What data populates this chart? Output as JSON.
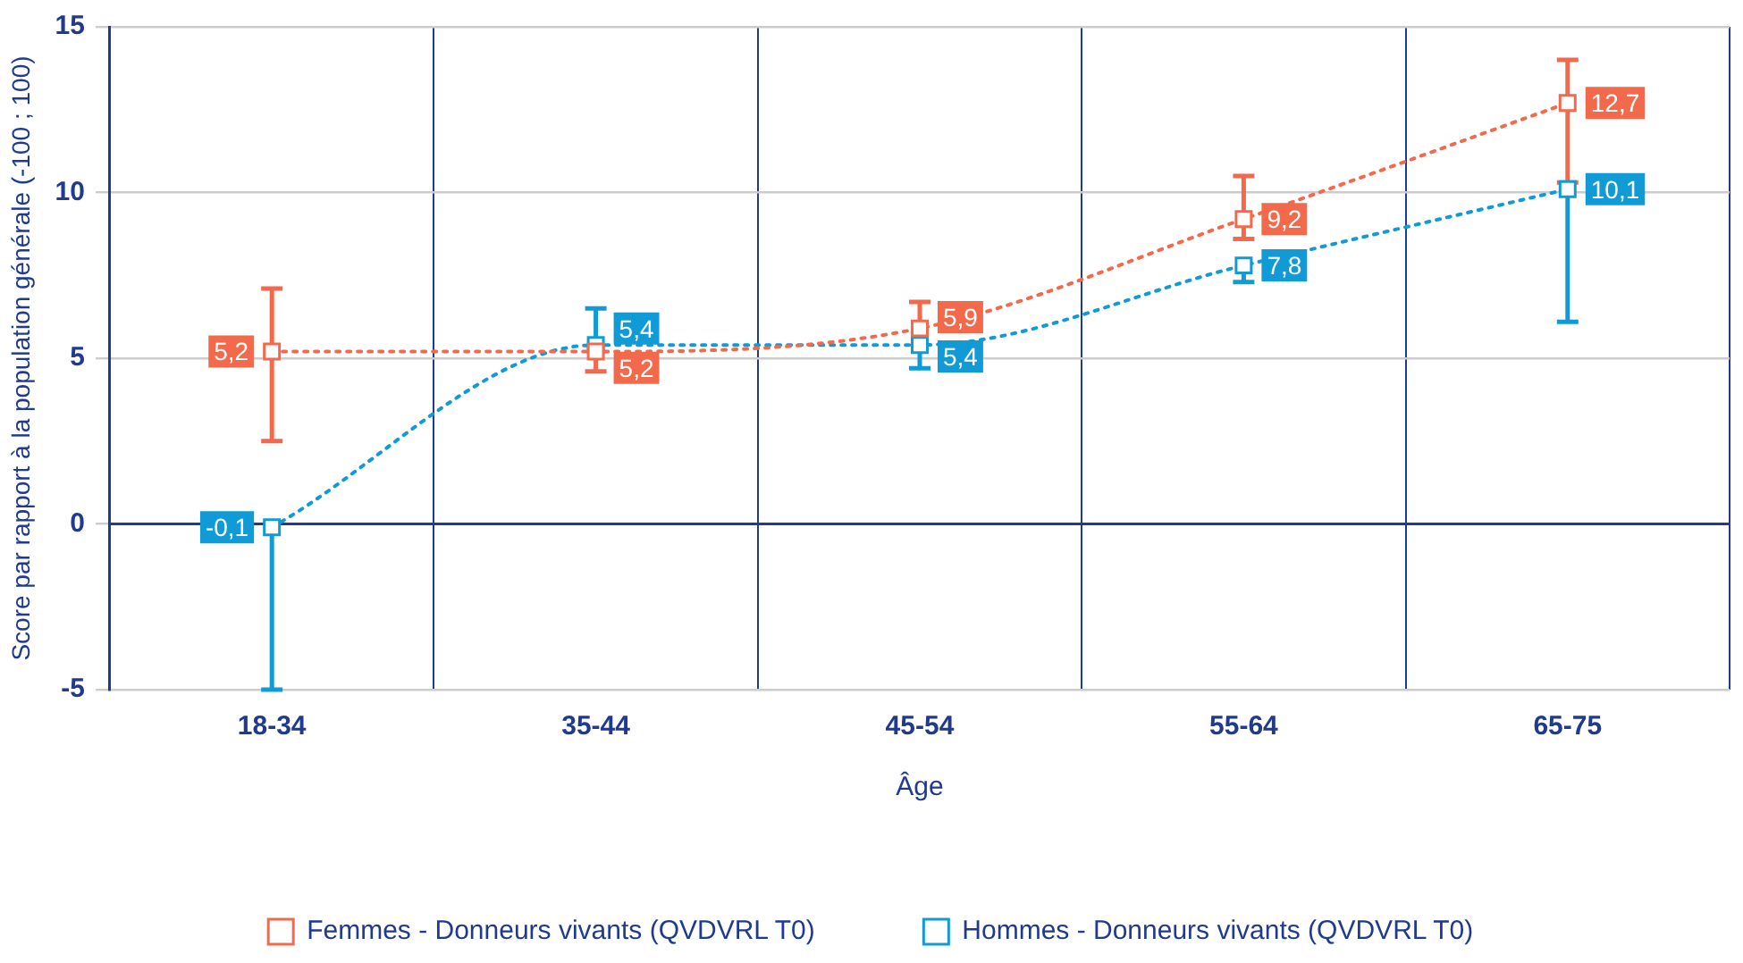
{
  "chart_data": {
    "type": "line",
    "xlabel": "Âge",
    "ylabel": "Score par rapport à la population générale (-100 ; 100)",
    "categories": [
      "18-34",
      "35-44",
      "45-54",
      "55-64",
      "65-75"
    ],
    "series": [
      {
        "name": "Hommes - Donneurs vivants (QVDVRL T0)",
        "color": "#119bd6",
        "values": [
          -0.1,
          5.4,
          5.4,
          7.8,
          10.1
        ],
        "value_labels": [
          "-0,1",
          "5,4",
          "5,4",
          "7,8",
          "10,1"
        ],
        "errors": [
          [
            -5,
            -0.1
          ],
          [
            5.4,
            6.5
          ],
          [
            4.7,
            5.4
          ],
          [
            7.3,
            7.8
          ],
          [
            6.1,
            10.1
          ]
        ]
      },
      {
        "name": "Femmes - Donneurs vivants (QVDVRL T0)",
        "color": "#f26a4b",
        "values": [
          5.2,
          5.2,
          5.9,
          9.2,
          12.7
        ],
        "value_labels": [
          "5,2",
          "5,2",
          "5,9",
          "9,2",
          "12,7"
        ],
        "errors": [
          [
            2.5,
            7.1
          ],
          [
            4.6,
            5.2
          ],
          [
            5.9,
            6.7
          ],
          [
            8.6,
            10.5
          ],
          [
            10.3,
            14.0
          ]
        ]
      }
    ],
    "ref_lines": [
      {
        "axis": "y",
        "value": 0,
        "color": "#1f3a8f"
      }
    ],
    "ylim": [
      -5,
      15
    ],
    "yticks": [
      -5,
      0,
      5,
      10,
      15
    ],
    "grid": true,
    "legend": "bottom",
    "marker": "square",
    "line_style": "dotted"
  }
}
